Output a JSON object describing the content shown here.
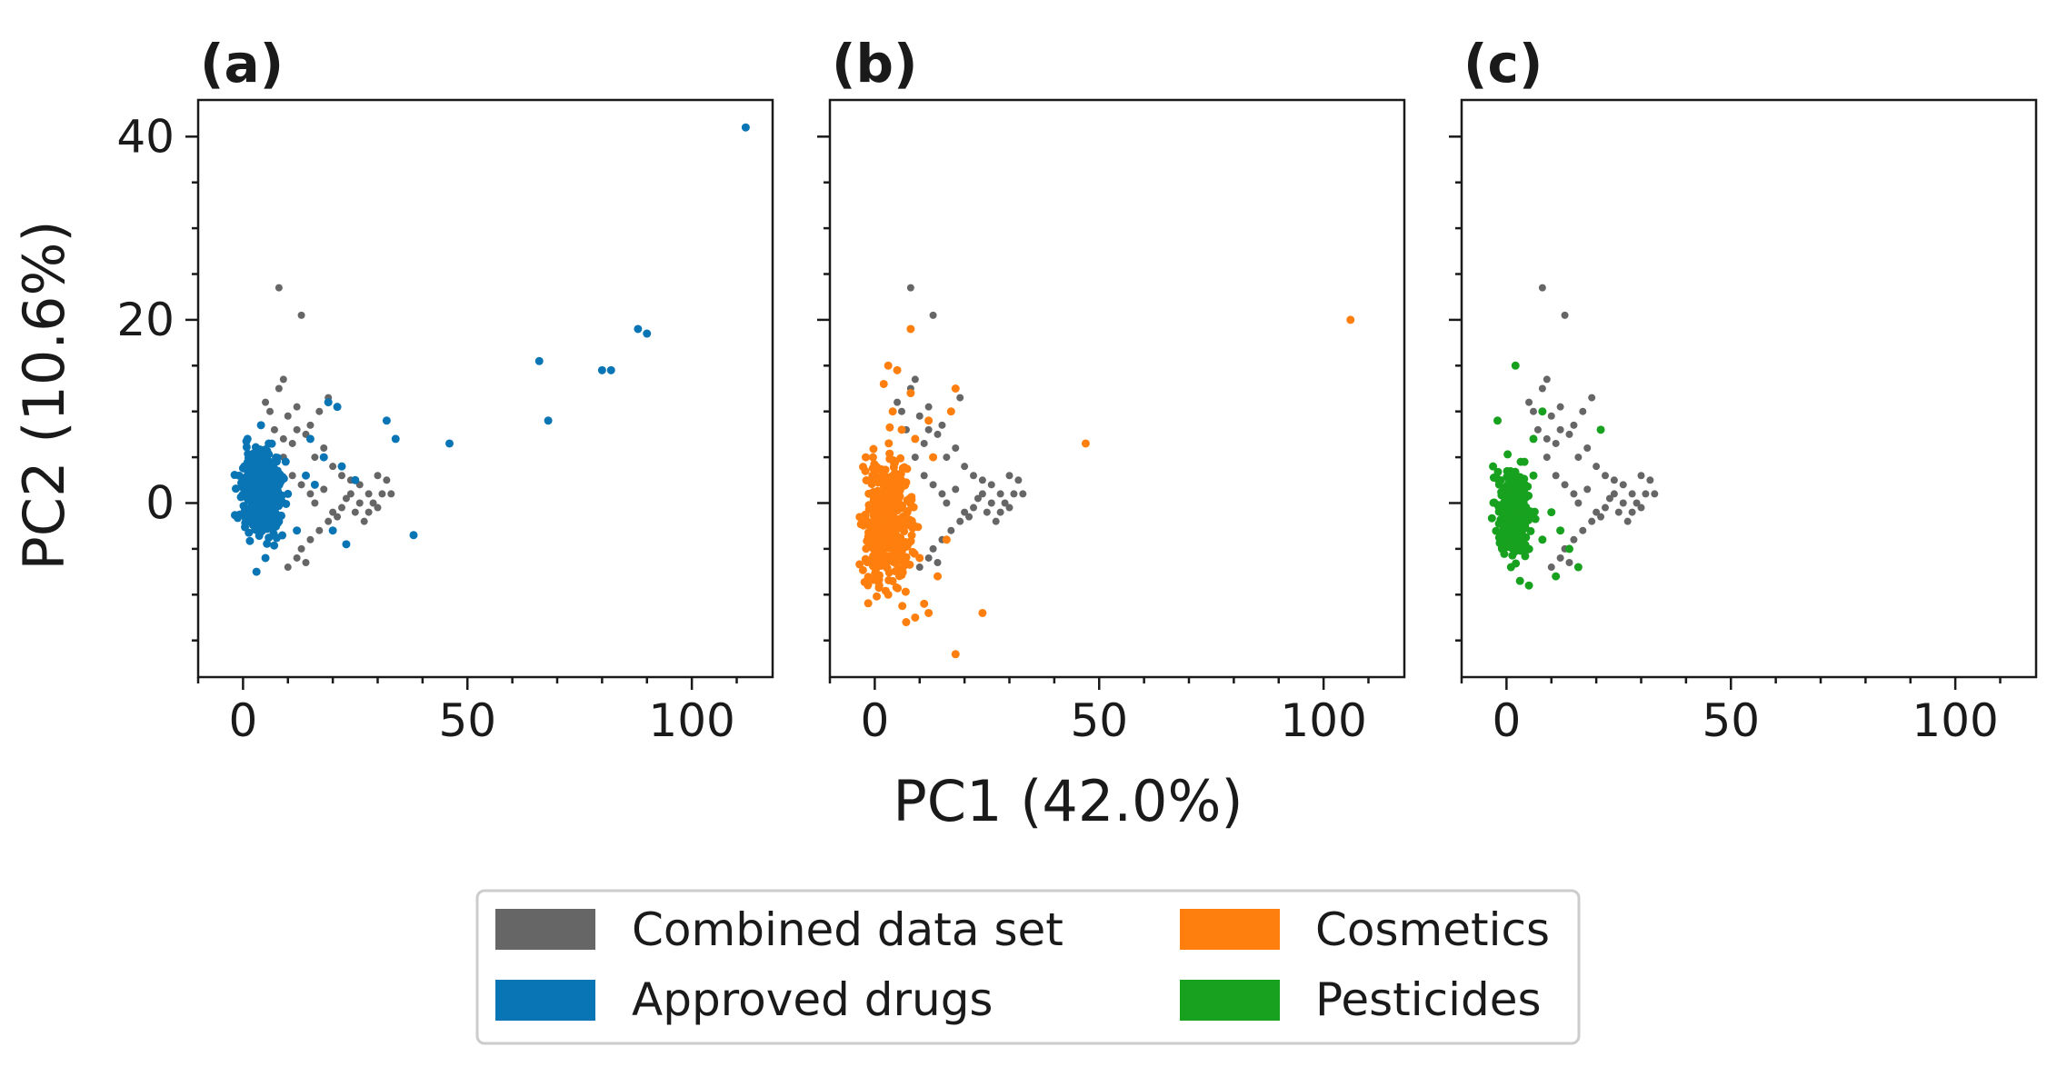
{
  "chart_data": {
    "type": "scatter",
    "xlabel": "PC1 (42.0%)",
    "ylabel": "PC2 (10.6%)",
    "xlim": [
      -10,
      118
    ],
    "ylim": [
      -19,
      44
    ],
    "xticks": [
      0,
      50,
      100
    ],
    "yticks": [
      0,
      20,
      40
    ],
    "xtick_labels": [
      "0",
      "50",
      "100"
    ],
    "ytick_labels": [
      "0",
      "20",
      "40"
    ],
    "grid": false,
    "colors": {
      "combined": "#666666",
      "approved": "#0a75b5",
      "cosmetics": "#ff7f0e",
      "pesticides": "#17a11f"
    },
    "legend": {
      "placement": "bottom-center",
      "entries": [
        {
          "key": "combined",
          "label": "Combined data set"
        },
        {
          "key": "cosmetics",
          "label": "Cosmetics"
        },
        {
          "key": "approved",
          "label": "Approved drugs"
        },
        {
          "key": "pesticides",
          "label": "Pesticides"
        }
      ]
    },
    "combined_points": [
      [
        8,
        23.5
      ],
      [
        13,
        20.5
      ],
      [
        9,
        13.5
      ],
      [
        8,
        12.5
      ],
      [
        5,
        11
      ],
      [
        6,
        10
      ],
      [
        10,
        9.5
      ],
      [
        12,
        8
      ],
      [
        14,
        7.5
      ],
      [
        11,
        6.5
      ],
      [
        15,
        8.5
      ],
      [
        17,
        10
      ],
      [
        19,
        11.5
      ],
      [
        18,
        6
      ],
      [
        20,
        4
      ],
      [
        22,
        3
      ],
      [
        24,
        2.5
      ],
      [
        26,
        2
      ],
      [
        28,
        1
      ],
      [
        30,
        3
      ],
      [
        32,
        2.5
      ],
      [
        33,
        1
      ],
      [
        25,
        -1
      ],
      [
        27,
        -2
      ],
      [
        29,
        0
      ],
      [
        31,
        1
      ],
      [
        23,
        0.5
      ],
      [
        21,
        -1.5
      ],
      [
        19,
        -2
      ],
      [
        17,
        -3
      ],
      [
        15,
        -4
      ],
      [
        13,
        -5
      ],
      [
        12,
        -6
      ],
      [
        14,
        -6.5
      ],
      [
        10,
        -7
      ],
      [
        9,
        5
      ],
      [
        11,
        3
      ],
      [
        13,
        2
      ],
      [
        15,
        1
      ],
      [
        16,
        0
      ],
      [
        18,
        1.5
      ],
      [
        7,
        8
      ],
      [
        9,
        7
      ],
      [
        20,
        -1
      ],
      [
        22,
        -0.5
      ],
      [
        24,
        1
      ],
      [
        26,
        0
      ],
      [
        28,
        -1
      ],
      [
        30,
        -0.5
      ],
      [
        12,
        10.5
      ],
      [
        16,
        5
      ]
    ],
    "series": [
      {
        "name": "Approved drugs",
        "key": "approved",
        "points": [
          [
            112,
            41
          ],
          [
            88,
            19
          ],
          [
            90,
            18.5
          ],
          [
            66,
            15.5
          ],
          [
            80,
            14.5
          ],
          [
            82,
            14.5
          ],
          [
            68,
            9
          ],
          [
            46,
            6.5
          ],
          [
            32,
            9
          ],
          [
            34,
            7
          ],
          [
            38,
            -3.5
          ],
          [
            19,
            11
          ],
          [
            21,
            10.5
          ],
          [
            15,
            7
          ],
          [
            18,
            5
          ],
          [
            22,
            4
          ],
          [
            25,
            2.5
          ],
          [
            16,
            2
          ],
          [
            20,
            -3
          ],
          [
            23,
            -4.5
          ],
          [
            3,
            -7.5
          ],
          [
            5,
            -6
          ],
          [
            1,
            7
          ],
          [
            4,
            8.5
          ],
          [
            2,
            5
          ],
          [
            12,
            -3
          ],
          [
            10,
            1
          ],
          [
            14,
            3
          ],
          [
            8,
            -2
          ]
        ],
        "cluster": [
          -3,
          11,
          -6,
          8
        ]
      },
      {
        "name": "Cosmetics",
        "key": "cosmetics",
        "points": [
          [
            106,
            20
          ],
          [
            47,
            6.5
          ],
          [
            8,
            19
          ],
          [
            3,
            15
          ],
          [
            5,
            14.5
          ],
          [
            2,
            13
          ],
          [
            8,
            12
          ],
          [
            18,
            12.5
          ],
          [
            17,
            10
          ],
          [
            12,
            9
          ],
          [
            9,
            7
          ],
          [
            13,
            5
          ],
          [
            24,
            -12
          ],
          [
            18,
            -16.5
          ],
          [
            12,
            -12
          ],
          [
            14,
            -8
          ],
          [
            10,
            -6
          ],
          [
            16,
            -4
          ],
          [
            7,
            -13
          ],
          [
            9,
            -12.5
          ],
          [
            11,
            -11
          ],
          [
            4,
            10
          ],
          [
            6,
            8
          ],
          [
            -2,
            5
          ],
          [
            1,
            -9
          ],
          [
            3,
            -10
          ]
        ],
        "cluster": [
          -5,
          11,
          -13,
          9
        ]
      },
      {
        "name": "Pesticides",
        "key": "pesticides",
        "points": [
          [
            2,
            15
          ],
          [
            21,
            8
          ],
          [
            8,
            10
          ],
          [
            6,
            7
          ],
          [
            -2,
            9
          ],
          [
            -3,
            4
          ],
          [
            4,
            4.5
          ],
          [
            10,
            -1
          ],
          [
            12,
            -3
          ],
          [
            16,
            -7
          ],
          [
            11,
            -8
          ],
          [
            5,
            -9
          ],
          [
            3,
            -8.5
          ],
          [
            1,
            -7
          ],
          [
            -1,
            -5
          ],
          [
            8,
            -4
          ],
          [
            14,
            -5
          ],
          [
            6,
            3
          ]
        ],
        "cluster": [
          -4,
          7,
          -8,
          6
        ]
      }
    ],
    "panels": [
      {
        "label": "(a)",
        "series_key": "approved",
        "show_combined": true,
        "y_ticklabels": true
      },
      {
        "label": "(b)",
        "series_key": "cosmetics",
        "show_combined": true,
        "y_ticklabels": false
      },
      {
        "label": "(c)",
        "series_key": "pesticides",
        "show_combined": true,
        "y_ticklabels": false
      }
    ]
  }
}
